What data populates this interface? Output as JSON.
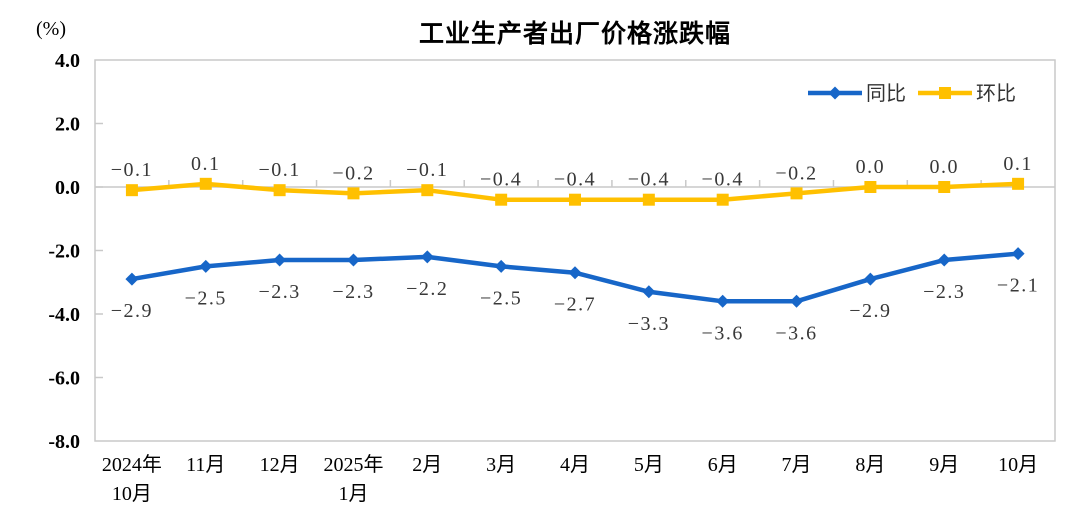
{
  "chart_data": {
    "type": "line",
    "title": "工业生产者出厂价格涨跌幅",
    "unit_label": "(%)",
    "ylim": [
      -8,
      4
    ],
    "y_ticks": [
      4,
      2,
      0,
      -2,
      -4,
      -6,
      -8
    ],
    "y_tick_labels": [
      "4.0",
      "2.0",
      "0.0",
      "-2.0",
      "-4.0",
      "-6.0",
      "-8.0"
    ],
    "categories": [
      [
        "2024年",
        "10月"
      ],
      [
        "11月"
      ],
      [
        "12月"
      ],
      [
        "2025年",
        "1月"
      ],
      [
        "2月"
      ],
      [
        "3月"
      ],
      [
        "4月"
      ],
      [
        "5月"
      ],
      [
        "6月"
      ],
      [
        "7月"
      ],
      [
        "8月"
      ],
      [
        "9月"
      ],
      [
        "10月"
      ]
    ],
    "series": [
      {
        "name": "同比",
        "color": "#1766C8",
        "marker": "diamond",
        "label_side": "below",
        "values": [
          -2.9,
          -2.5,
          -2.3,
          -2.3,
          -2.2,
          -2.5,
          -2.7,
          -3.3,
          -3.6,
          -3.6,
          -2.9,
          -2.3,
          -2.1
        ],
        "labels": [
          "−2.9",
          "−2.5",
          "−2.3",
          "−2.3",
          "−2.2",
          "−2.5",
          "−2.7",
          "−3.3",
          "−3.6",
          "−3.6",
          "−2.9",
          "−2.3",
          "−2.1"
        ]
      },
      {
        "name": "环比",
        "color": "#FFC000",
        "marker": "square",
        "label_side": "above",
        "values": [
          -0.1,
          0.1,
          -0.1,
          -0.2,
          -0.1,
          -0.4,
          -0.4,
          -0.4,
          -0.4,
          -0.2,
          0.0,
          0.0,
          0.1
        ],
        "labels": [
          "−0.1",
          "0.1",
          "−0.1",
          "−0.2",
          "−0.1",
          "−0.4",
          "−0.4",
          "−0.4",
          "−0.4",
          "−0.2",
          "0.0",
          "0.0",
          "0.1"
        ]
      }
    ],
    "legend": {
      "position": "top-right",
      "items": [
        "同比",
        "环比"
      ]
    },
    "grid": {
      "border_color": "#C9C9C9",
      "zero_line": true
    },
    "label_color": "#383838",
    "axis_text_color": "#000000"
  }
}
